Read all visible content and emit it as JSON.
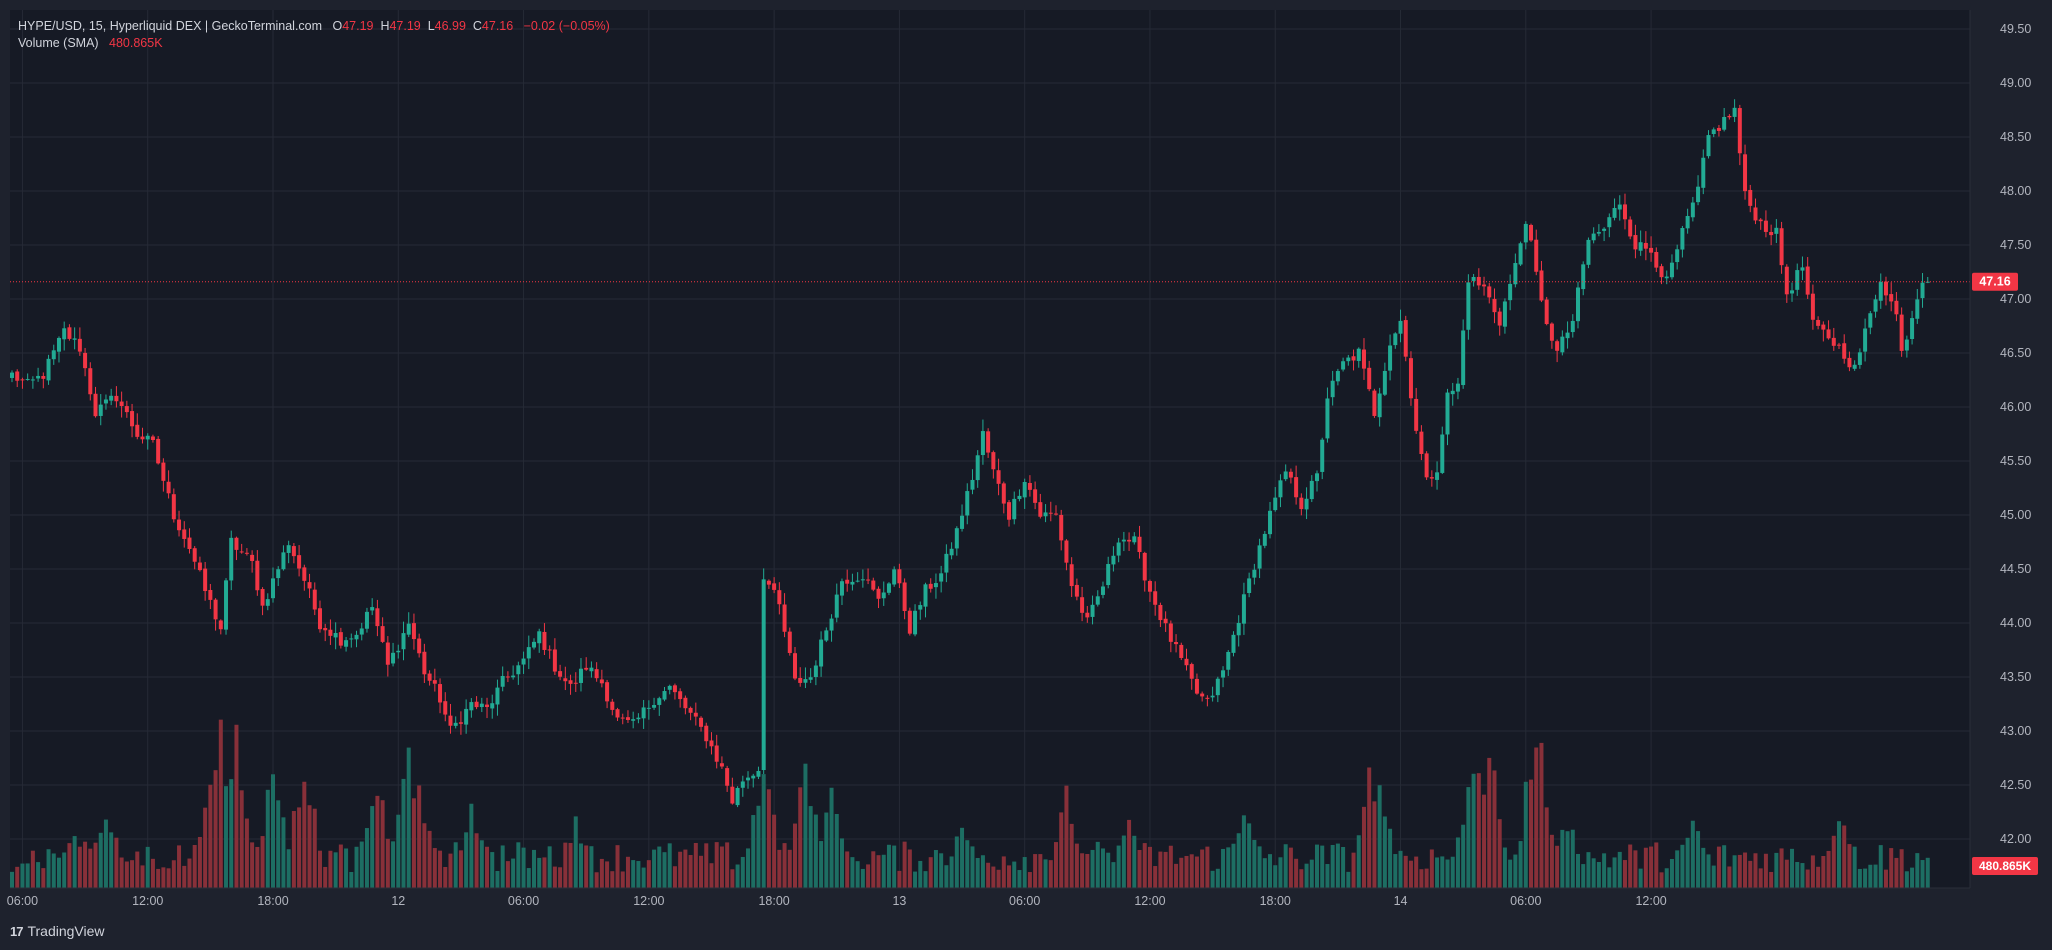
{
  "legend": {
    "symbol": "HYPE/USD, 15, Hyperliquid DEX | GeckoTerminal.com",
    "o_label": "O",
    "o_value": "47.19",
    "h_label": "H",
    "h_value": "47.19",
    "l_label": "L",
    "l_value": "46.99",
    "c_label": "C",
    "c_value": "47.16",
    "change": "−0.02 (−0.05%)",
    "volume_label": "Volume (SMA)",
    "volume_value": "480.865K"
  },
  "branding": {
    "name": "TradingView",
    "logo": "17"
  },
  "colors": {
    "up": "#22ab94",
    "down": "#f23645",
    "volume_up": "#1d6e63",
    "volume_down": "#883039",
    "background": "#1e222d",
    "plot_background": "#161a25",
    "grid": "#262a36",
    "text": "#b2b5be"
  },
  "chart_data": {
    "type": "candlestick",
    "interval_minutes": 15,
    "start_time": "11 05:30",
    "y_axis_labels": [
      "49.50",
      "49.00",
      "48.50",
      "48.00",
      "47.50",
      "47.00",
      "46.50",
      "46.00",
      "45.50",
      "45.00",
      "44.50",
      "44.00",
      "43.50",
      "43.00",
      "42.50",
      "42.00"
    ],
    "ylim": [
      41.55,
      49.75
    ],
    "x_axis_labels": [
      "06:00",
      "12:00",
      "18:00",
      "12",
      "06:00",
      "12:00",
      "18:00",
      "13",
      "06:00",
      "12:00",
      "18:00",
      "14",
      "06:00",
      "12:00"
    ],
    "last_price": "47.16",
    "last_volume": "480.865K",
    "volume_max": 2950000,
    "anchors": [
      [
        0,
        46.3
      ],
      [
        3,
        46.2
      ],
      [
        6,
        46.3
      ],
      [
        10,
        46.7
      ],
      [
        13,
        46.55
      ],
      [
        16,
        45.95
      ],
      [
        20,
        46.1
      ],
      [
        24,
        45.75
      ],
      [
        27,
        45.65
      ],
      [
        31,
        45.0
      ],
      [
        34,
        44.7
      ],
      [
        37,
        44.3
      ],
      [
        40,
        43.95
      ],
      [
        42,
        44.75
      ],
      [
        46,
        44.55
      ],
      [
        48,
        44.15
      ],
      [
        53,
        44.75
      ],
      [
        56,
        44.4
      ],
      [
        59,
        44.0
      ],
      [
        63,
        43.85
      ],
      [
        66,
        43.9
      ],
      [
        69,
        44.15
      ],
      [
        72,
        43.6
      ],
      [
        76,
        44.0
      ],
      [
        79,
        43.55
      ],
      [
        82,
        43.3
      ],
      [
        84,
        43.0
      ],
      [
        88,
        43.25
      ],
      [
        91,
        43.2
      ],
      [
        94,
        43.45
      ],
      [
        98,
        43.65
      ],
      [
        101,
        43.9
      ],
      [
        104,
        43.6
      ],
      [
        107,
        43.4
      ],
      [
        110,
        43.6
      ],
      [
        113,
        43.45
      ],
      [
        116,
        43.1
      ],
      [
        119,
        43.05
      ],
      [
        123,
        43.3
      ],
      [
        126,
        43.4
      ],
      [
        130,
        43.15
      ],
      [
        133,
        42.95
      ],
      [
        136,
        42.65
      ],
      [
        138,
        42.35
      ],
      [
        140,
        42.55
      ],
      [
        143,
        42.65
      ],
      [
        144,
        44.45
      ],
      [
        147,
        44.15
      ],
      [
        150,
        43.45
      ],
      [
        153,
        43.5
      ],
      [
        156,
        43.95
      ],
      [
        159,
        44.4
      ],
      [
        163,
        44.45
      ],
      [
        166,
        44.2
      ],
      [
        169,
        44.5
      ],
      [
        172,
        43.95
      ],
      [
        175,
        44.3
      ],
      [
        178,
        44.45
      ],
      [
        181,
        44.85
      ],
      [
        184,
        45.35
      ],
      [
        186,
        45.75
      ],
      [
        188,
        45.4
      ],
      [
        191,
        45.0
      ],
      [
        194,
        45.35
      ],
      [
        197,
        45.0
      ],
      [
        200,
        45.0
      ],
      [
        203,
        44.35
      ],
      [
        206,
        44.0
      ],
      [
        209,
        44.35
      ],
      [
        212,
        44.8
      ],
      [
        215,
        44.75
      ],
      [
        218,
        44.3
      ],
      [
        221,
        43.95
      ],
      [
        224,
        43.65
      ],
      [
        227,
        43.35
      ],
      [
        229,
        43.25
      ],
      [
        232,
        43.55
      ],
      [
        235,
        44.05
      ],
      [
        238,
        44.55
      ],
      [
        241,
        45.0
      ],
      [
        244,
        45.4
      ],
      [
        247,
        45.1
      ],
      [
        250,
        45.35
      ],
      [
        252,
        46.1
      ],
      [
        255,
        46.4
      ],
      [
        258,
        46.5
      ],
      [
        261,
        45.95
      ],
      [
        264,
        46.6
      ],
      [
        266,
        46.8
      ],
      [
        269,
        45.8
      ],
      [
        271,
        45.3
      ],
      [
        273,
        45.45
      ],
      [
        275,
        46.1
      ],
      [
        277,
        46.2
      ],
      [
        279,
        47.2
      ],
      [
        282,
        47.1
      ],
      [
        285,
        46.8
      ],
      [
        288,
        47.3
      ],
      [
        290,
        47.75
      ],
      [
        293,
        46.95
      ],
      [
        296,
        46.5
      ],
      [
        299,
        46.8
      ],
      [
        302,
        47.55
      ],
      [
        305,
        47.65
      ],
      [
        308,
        47.9
      ],
      [
        311,
        47.5
      ],
      [
        314,
        47.45
      ],
      [
        317,
        47.15
      ],
      [
        320,
        47.6
      ],
      [
        323,
        48.0
      ],
      [
        325,
        48.5
      ],
      [
        328,
        48.65
      ],
      [
        330,
        48.75
      ],
      [
        332,
        47.95
      ],
      [
        335,
        47.7
      ],
      [
        338,
        47.6
      ],
      [
        340,
        47.05
      ],
      [
        343,
        47.3
      ],
      [
        345,
        46.75
      ],
      [
        348,
        46.65
      ],
      [
        351,
        46.5
      ],
      [
        353,
        46.35
      ],
      [
        356,
        46.85
      ],
      [
        358,
        47.2
      ],
      [
        361,
        46.85
      ],
      [
        362,
        46.5
      ],
      [
        364,
        46.85
      ],
      [
        366,
        47.2
      ],
      [
        367,
        47.16
      ]
    ],
    "volume_bursts": [
      [
        12,
        0.25
      ],
      [
        18,
        0.35
      ],
      [
        38,
        0.5
      ],
      [
        40,
        0.7
      ],
      [
        43,
        0.65
      ],
      [
        50,
        0.5
      ],
      [
        56,
        0.55
      ],
      [
        70,
        0.45
      ],
      [
        76,
        0.6
      ],
      [
        78,
        0.4
      ],
      [
        88,
        0.35
      ],
      [
        108,
        0.3
      ],
      [
        144,
        0.55
      ],
      [
        152,
        0.55
      ],
      [
        157,
        0.42
      ],
      [
        182,
        0.3
      ],
      [
        202,
        0.4
      ],
      [
        214,
        0.3
      ],
      [
        236,
        0.35
      ],
      [
        260,
        0.5
      ],
      [
        262,
        0.5
      ],
      [
        280,
        0.6
      ],
      [
        283,
        0.6
      ],
      [
        292,
        0.75
      ],
      [
        298,
        0.3
      ],
      [
        322,
        0.3
      ],
      [
        350,
        0.35
      ]
    ]
  }
}
